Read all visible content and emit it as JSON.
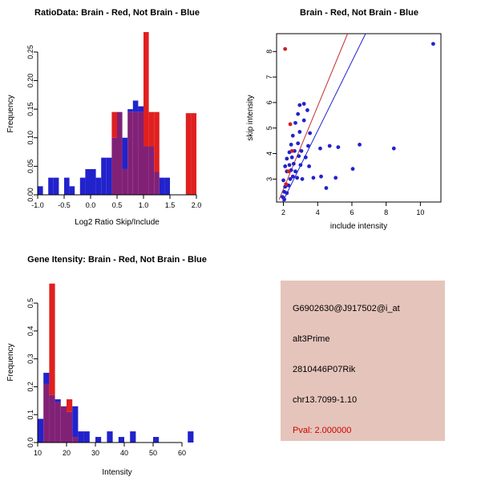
{
  "window": {
    "bg": "#FFFFFF"
  },
  "chart_data": [
    {
      "id": "ratio_histogram",
      "type": "bar",
      "title": "RatioData: Brain - Red, Not Brain - Blue",
      "xlabel": "Log2 Ratio Skip/Include",
      "ylabel": "Frequency",
      "xlim": [
        -1.0,
        2.0
      ],
      "ylim": [
        0,
        0.285
      ],
      "xticks": [
        -1.0,
        -0.5,
        0.0,
        0.5,
        1.0,
        1.5,
        2.0
      ],
      "xtick_labels": [
        "-1.0",
        "-0.5",
        "0.0",
        "0.5",
        "1.0",
        "1.5",
        "2.0"
      ],
      "yticks": [
        0,
        0.05,
        0.1,
        0.15,
        0.2,
        0.25
      ],
      "ytick_labels": [
        "0.00",
        "0.05",
        "0.10",
        "0.15",
        "0.20",
        "0.25"
      ],
      "grid": false,
      "legend": "none",
      "bin_start": -1.0,
      "bin_width": 0.1,
      "overlap_color": "#812176",
      "series": [
        {
          "name": "Not Brain",
          "color": "#2222CC",
          "values": [
            0.015,
            0,
            0.03,
            0.03,
            0,
            0.03,
            0.015,
            0,
            0.03,
            0.045,
            0.045,
            0.03,
            0.065,
            0.065,
            0.1,
            0.145,
            0.1,
            0.15,
            0.165,
            0.155,
            0.085,
            0.085,
            0.04,
            0.03,
            0.03,
            0,
            0,
            0,
            0,
            0
          ]
        },
        {
          "name": "Brain",
          "color": "#E02020",
          "values": [
            0,
            0,
            0,
            0,
            0,
            0,
            0,
            0,
            0,
            0,
            0,
            0,
            0,
            0,
            0.145,
            0.145,
            0.045,
            0.145,
            0.145,
            0.145,
            0.285,
            0.145,
            0.145,
            0,
            0,
            0,
            0,
            0,
            0.143,
            0.143
          ]
        }
      ]
    },
    {
      "id": "intensity_scatter",
      "type": "scatter",
      "title": "Brain - Red, Not Brain - Blue",
      "xlabel": "include intensity",
      "ylabel": "skip intensity",
      "xlim": [
        1.6,
        11.2
      ],
      "ylim": [
        2.1,
        8.7
      ],
      "xticks": [
        2,
        4,
        6,
        8,
        10
      ],
      "xtick_labels": [
        "2",
        "4",
        "6",
        "8",
        "10"
      ],
      "yticks": [
        3,
        4,
        5,
        6,
        7,
        8
      ],
      "ytick_labels": [
        "3",
        "4",
        "5",
        "6",
        "7",
        "8"
      ],
      "grid": false,
      "legend": "none",
      "colors": {
        "blue": "#2222CC",
        "red": "#D02020"
      },
      "points": [
        [
          1.95,
          2.3,
          "b"
        ],
        [
          2.05,
          2.5,
          "b"
        ],
        [
          2.2,
          2.45,
          "b"
        ],
        [
          2.3,
          2.75,
          "b"
        ],
        [
          2.1,
          2.7,
          "b"
        ],
        [
          2.0,
          2.95,
          "b"
        ],
        [
          2.4,
          3.0,
          "b"
        ],
        [
          2.55,
          3.1,
          "b"
        ],
        [
          2.8,
          3.05,
          "b"
        ],
        [
          3.1,
          3.0,
          "b"
        ],
        [
          2.2,
          3.3,
          "b"
        ],
        [
          2.45,
          3.35,
          "b"
        ],
        [
          2.7,
          3.3,
          "b"
        ],
        [
          2.1,
          3.5,
          "b"
        ],
        [
          2.35,
          3.55,
          "b"
        ],
        [
          2.6,
          3.6,
          "b"
        ],
        [
          3.0,
          3.55,
          "b"
        ],
        [
          3.5,
          3.5,
          "b"
        ],
        [
          2.2,
          3.8,
          "b"
        ],
        [
          2.5,
          3.85,
          "b"
        ],
        [
          2.9,
          3.9,
          "b"
        ],
        [
          3.3,
          3.85,
          "b"
        ],
        [
          2.35,
          4.05,
          "b"
        ],
        [
          2.65,
          4.1,
          "b"
        ],
        [
          3.05,
          4.1,
          "b"
        ],
        [
          2.45,
          4.35,
          "b"
        ],
        [
          2.85,
          4.4,
          "b"
        ],
        [
          3.45,
          4.3,
          "b"
        ],
        [
          2.55,
          4.7,
          "b"
        ],
        [
          2.95,
          4.85,
          "b"
        ],
        [
          3.55,
          4.8,
          "b"
        ],
        [
          2.7,
          5.2,
          "b"
        ],
        [
          3.2,
          5.3,
          "b"
        ],
        [
          2.85,
          5.55,
          "b"
        ],
        [
          3.4,
          5.7,
          "b"
        ],
        [
          2.95,
          5.9,
          "b"
        ],
        [
          3.2,
          5.95,
          "b"
        ],
        [
          2.05,
          2.2,
          "b"
        ],
        [
          3.75,
          3.05,
          "b"
        ],
        [
          4.5,
          2.65,
          "b"
        ],
        [
          4.2,
          3.1,
          "b"
        ],
        [
          5.05,
          3.05,
          "b"
        ],
        [
          6.05,
          3.4,
          "b"
        ],
        [
          4.15,
          4.2,
          "b"
        ],
        [
          4.7,
          4.3,
          "b"
        ],
        [
          5.2,
          4.25,
          "b"
        ],
        [
          6.45,
          4.35,
          "b"
        ],
        [
          8.45,
          4.2,
          "b"
        ],
        [
          10.75,
          8.3,
          "b"
        ],
        [
          2.1,
          8.1,
          "r"
        ],
        [
          2.4,
          5.15,
          "r"
        ],
        [
          2.3,
          3.3,
          "r"
        ],
        [
          2.15,
          2.8,
          "r"
        ],
        [
          2.5,
          4.1,
          "r"
        ]
      ],
      "lines": [
        {
          "x1": 1.75,
          "y1": 2.2,
          "x2": 5.75,
          "y2": 8.7,
          "color": "#C03030"
        },
        {
          "x1": 1.95,
          "y1": 2.1,
          "x2": 6.8,
          "y2": 8.7,
          "color": "#2222CC"
        }
      ]
    },
    {
      "id": "gene_intensity_histogram",
      "type": "bar",
      "title": "Gene Itensity: Brain - Red, Not Brain - Blue",
      "xlabel": "Intensity",
      "ylabel": "Frequency",
      "xlim": [
        10,
        65
      ],
      "ylim": [
        0,
        0.575
      ],
      "xticks": [
        10,
        20,
        30,
        40,
        50,
        60
      ],
      "xtick_labels": [
        "10",
        "20",
        "30",
        "40",
        "50",
        "60"
      ],
      "yticks": [
        0,
        0.1,
        0.2,
        0.3,
        0.4,
        0.5
      ],
      "ytick_labels": [
        "0.0",
        "0.1",
        "0.2",
        "0.3",
        "0.4",
        "0.5"
      ],
      "grid": false,
      "legend": "none",
      "bin_start": 10,
      "bin_width": 2,
      "overlap_color": "#812176",
      "series": [
        {
          "name": "Not Brain",
          "color": "#2222CC",
          "values": [
            0.085,
            0.25,
            0.17,
            0.155,
            0.13,
            0.11,
            0.13,
            0.04,
            0.04,
            0,
            0.02,
            0,
            0.04,
            0,
            0.02,
            0,
            0.04,
            0,
            0,
            0,
            0.02,
            0,
            0,
            0,
            0,
            0,
            0.04
          ]
        },
        {
          "name": "Brain",
          "color": "#E02020",
          "values": [
            0,
            0.21,
            0.57,
            0.145,
            0.13,
            0.155,
            0.02,
            0,
            0,
            0,
            0,
            0,
            0,
            0,
            0,
            0,
            0,
            0,
            0,
            0,
            0,
            0,
            0,
            0,
            0,
            0,
            0
          ]
        }
      ]
    }
  ],
  "info_box": {
    "bg": "#E5C4BB",
    "pval_color": "#CC0000",
    "lines": [
      "G6902630@J917502@i_at",
      "alt3Prime",
      "2810446P07Rik",
      "chr13.7099-1.10",
      "Pval: 2.000000"
    ]
  }
}
